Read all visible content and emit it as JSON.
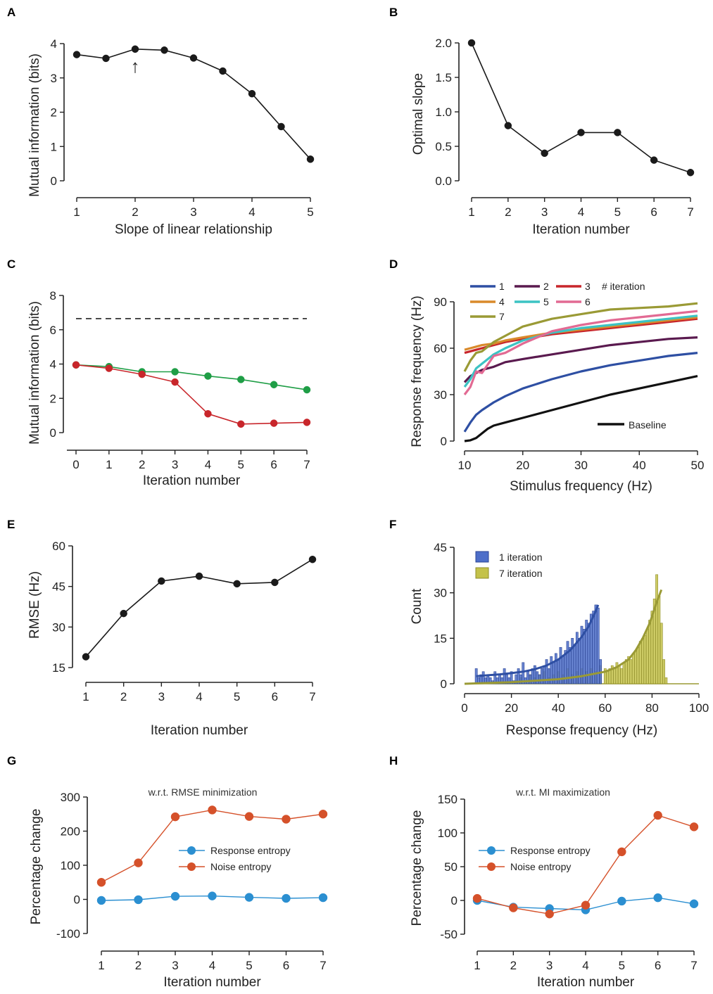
{
  "chart_data": [
    {
      "id": "A",
      "type": "line",
      "xlabel": "Slope of linear relationship",
      "ylabel": "Mutual information (bits)",
      "xlim": [
        1,
        5
      ],
      "ylim": [
        0,
        4
      ],
      "xticks": [
        "1",
        "2",
        "3",
        "4",
        "5"
      ],
      "yticks": [
        "0",
        "1",
        "2",
        "3",
        "4"
      ],
      "series": [
        {
          "name": "mutual information",
          "color": "#1a1a1a",
          "x": [
            1,
            1.5,
            2,
            2.5,
            3,
            3.5,
            4,
            4.5,
            5
          ],
          "y": [
            3.68,
            3.57,
            3.84,
            3.81,
            3.58,
            3.2,
            2.54,
            1.58,
            0.63
          ]
        }
      ],
      "annotation": {
        "x": 2,
        "symbol": "↑"
      }
    },
    {
      "id": "B",
      "type": "line",
      "xlabel": "Iteration number",
      "ylabel": "Optimal slope",
      "xlim": [
        1,
        7
      ],
      "ylim": [
        0,
        2
      ],
      "xticks": [
        "1",
        "2",
        "3",
        "4",
        "5",
        "6",
        "7"
      ],
      "yticks": [
        "0.0",
        "0.5",
        "1.0",
        "1.5",
        "2.0"
      ],
      "series": [
        {
          "name": "optimal slope",
          "color": "#1a1a1a",
          "x": [
            1,
            2,
            3,
            4,
            5,
            6,
            7
          ],
          "y": [
            2.0,
            0.8,
            0.4,
            0.7,
            0.7,
            0.3,
            0.12
          ]
        }
      ]
    },
    {
      "id": "C",
      "type": "line",
      "xlabel": "Iteration number",
      "ylabel": "Mutual information (bits)",
      "xlim": [
        0,
        7
      ],
      "ylim": [
        0,
        8
      ],
      "xticks": [
        "0",
        "1",
        "2",
        "3",
        "4",
        "5",
        "6",
        "7"
      ],
      "yticks": [
        "0",
        "2",
        "4",
        "6",
        "8"
      ],
      "reference_line": {
        "y": 6.65,
        "style": "dashed"
      },
      "series": [
        {
          "name": "green",
          "color": "#1f9e46",
          "x": [
            0,
            1,
            2,
            3,
            4,
            5,
            6,
            7
          ],
          "y": [
            3.95,
            3.85,
            3.55,
            3.55,
            3.3,
            3.1,
            2.8,
            2.5
          ]
        },
        {
          "name": "red",
          "color": "#c8262b",
          "x": [
            0,
            1,
            2,
            3,
            4,
            5,
            6,
            7
          ],
          "y": [
            3.95,
            3.75,
            3.4,
            2.95,
            1.1,
            0.5,
            0.55,
            0.6
          ]
        }
      ]
    },
    {
      "id": "D",
      "type": "line",
      "xlabel": "Stimulus frequency (Hz)",
      "ylabel": "Response frequency (Hz)",
      "xlim": [
        10,
        50
      ],
      "ylim": [
        0,
        90
      ],
      "xticks": [
        "10",
        "20",
        "30",
        "40",
        "50"
      ],
      "yticks": [
        "0",
        "30",
        "60",
        "90"
      ],
      "legend_title": "# iteration",
      "series": [
        {
          "name": "1",
          "color": "#2e4fa3",
          "x": [
            10,
            11,
            12,
            13,
            15,
            17,
            20,
            25,
            30,
            35,
            40,
            45,
            50
          ],
          "y": [
            6,
            12,
            17,
            20,
            25,
            29,
            34,
            40,
            45,
            49,
            52,
            55,
            57
          ]
        },
        {
          "name": "2",
          "color": "#5a1a4f",
          "x": [
            10,
            11,
            12,
            13,
            15,
            17,
            20,
            25,
            30,
            35,
            40,
            45,
            50
          ],
          "y": [
            38,
            42,
            44,
            46,
            48,
            51,
            53,
            56,
            59,
            62,
            64,
            66,
            67
          ]
        },
        {
          "name": "3",
          "color": "#c8262b",
          "x": [
            10,
            11,
            12,
            13,
            15,
            17,
            20,
            25,
            30,
            35,
            40,
            45,
            50
          ],
          "y": [
            57,
            58,
            59,
            60,
            62,
            64,
            66,
            69,
            71,
            73,
            75,
            77,
            79
          ]
        },
        {
          "name": "4",
          "color": "#d98a2b",
          "x": [
            10,
            11,
            12,
            13,
            15,
            17,
            20,
            25,
            30,
            35,
            40,
            45,
            50
          ],
          "y": [
            59,
            60,
            61,
            62,
            63,
            65,
            67,
            70,
            72,
            74,
            76,
            78,
            80
          ]
        },
        {
          "name": "5",
          "color": "#3cc3c3",
          "x": [
            10,
            11,
            12,
            13,
            15,
            17,
            20,
            25,
            30,
            35,
            40,
            45,
            50
          ],
          "y": [
            35,
            40,
            47,
            50,
            56,
            60,
            65,
            70,
            73,
            75,
            77,
            79,
            81
          ]
        },
        {
          "name": "6",
          "color": "#e26a93",
          "x": [
            10,
            11,
            12,
            13,
            15,
            17,
            20,
            25,
            30,
            35,
            40,
            45,
            50
          ],
          "y": [
            30,
            35,
            45,
            44,
            55,
            57,
            63,
            71,
            75,
            78,
            80,
            82,
            84
          ]
        },
        {
          "name": "7",
          "color": "#9a9a35",
          "x": [
            10,
            11,
            12,
            13,
            15,
            17,
            20,
            25,
            30,
            35,
            40,
            45,
            50
          ],
          "y": [
            45,
            52,
            57,
            58,
            64,
            68,
            74,
            79,
            82,
            85,
            86,
            87,
            89
          ]
        },
        {
          "name": "Baseline",
          "color": "#111111",
          "x": [
            10,
            11,
            12,
            13,
            14,
            15,
            17,
            20,
            25,
            30,
            35,
            40,
            45,
            50
          ],
          "y": [
            0,
            0.5,
            2,
            5,
            8,
            10,
            12,
            15,
            20,
            25,
            30,
            34,
            38,
            42
          ]
        }
      ]
    },
    {
      "id": "E",
      "type": "line",
      "xlabel": "Iteration number",
      "ylabel": "RMSE (Hz)",
      "xlim": [
        1,
        7
      ],
      "ylim": [
        15,
        60
      ],
      "xticks": [
        "1",
        "2",
        "3",
        "4",
        "5",
        "6",
        "7"
      ],
      "yticks": [
        "15",
        "30",
        "45",
        "60"
      ],
      "series": [
        {
          "name": "RMSE",
          "color": "#1a1a1a",
          "x": [
            1,
            2,
            3,
            4,
            5,
            6,
            7
          ],
          "y": [
            19,
            35,
            47,
            48.8,
            46,
            46.5,
            55
          ]
        }
      ]
    },
    {
      "id": "F",
      "type": "bar",
      "xlabel": "Response frequency (Hz)",
      "ylabel": "Count",
      "xlim": [
        0,
        100
      ],
      "ylim": [
        0,
        45
      ],
      "xticks": [
        "0",
        "20",
        "40",
        "60",
        "80",
        "100"
      ],
      "yticks": [
        "0",
        "15",
        "30",
        "45"
      ],
      "series": [
        {
          "name": "1 iteration",
          "color": "#4d6ec9",
          "edge": "#2b4495",
          "x": [
            5,
            6,
            7,
            8,
            9,
            10,
            11,
            12,
            13,
            14,
            15,
            16,
            17,
            18,
            19,
            20,
            21,
            22,
            23,
            24,
            25,
            26,
            27,
            28,
            29,
            30,
            31,
            32,
            33,
            34,
            35,
            36,
            37,
            38,
            39,
            40,
            41,
            42,
            43,
            44,
            45,
            46,
            47,
            48,
            49,
            50,
            51,
            52,
            53,
            54,
            55,
            56,
            57,
            58
          ],
          "values": [
            5,
            2,
            3,
            4,
            2,
            3,
            2,
            1,
            4,
            2,
            3,
            2,
            5,
            3,
            2,
            4,
            1,
            3,
            5,
            3,
            7,
            2,
            4,
            3,
            5,
            6,
            4,
            3,
            5,
            6,
            8,
            5,
            9,
            7,
            10,
            8,
            12,
            9,
            11,
            14,
            12,
            15,
            13,
            17,
            15,
            19,
            18,
            21,
            20,
            23,
            24,
            26,
            25,
            8
          ]
        },
        {
          "name": "7 iteration",
          "color": "#c4c24a",
          "edge": "#8f8d2a",
          "x": [
            22,
            24,
            26,
            28,
            30,
            32,
            34,
            36,
            38,
            40,
            42,
            44,
            46,
            48,
            50,
            52,
            54,
            56,
            58,
            60,
            61,
            62,
            63,
            64,
            65,
            66,
            67,
            68,
            69,
            70,
            71,
            72,
            73,
            74,
            75,
            76,
            77,
            78,
            79,
            80,
            81,
            82,
            83,
            84,
            85,
            86
          ],
          "values": [
            1,
            2,
            1,
            3,
            2,
            3,
            4,
            2,
            3,
            4,
            3,
            5,
            3,
            4,
            5,
            4,
            5,
            4,
            6,
            5,
            4,
            5,
            6,
            5,
            7,
            6,
            5,
            7,
            8,
            9,
            8,
            10,
            11,
            12,
            14,
            15,
            16,
            18,
            21,
            24,
            28,
            36,
            29,
            20,
            8,
            2
          ]
        }
      ],
      "fit_curves": [
        {
          "name": "1 iteration fit",
          "color": "#2e4fa3",
          "x": [
            5,
            10,
            15,
            20,
            25,
            30,
            35,
            40,
            45,
            50,
            53,
            56,
            57
          ],
          "y": [
            2.5,
            2.8,
            3.1,
            3.5,
            4,
            4.8,
            6,
            8,
            11,
            15.5,
            19,
            24,
            26
          ]
        },
        {
          "name": "7 iteration fit",
          "color": "#9a9a35",
          "x": [
            0,
            20,
            40,
            50,
            60,
            65,
            70,
            73,
            76,
            79,
            82,
            84
          ],
          "y": [
            0,
            0.5,
            1.5,
            2.5,
            4,
            5.5,
            8,
            11,
            15,
            20,
            27,
            31
          ]
        }
      ]
    },
    {
      "id": "G",
      "type": "line",
      "subtitle": "w.r.t. RMSE minimization",
      "xlabel": "Iteration number",
      "ylabel": "Percentage change",
      "xlim": [
        1,
        7
      ],
      "ylim": [
        -100,
        300
      ],
      "xticks": [
        "1",
        "2",
        "3",
        "4",
        "5",
        "6",
        "7"
      ],
      "yticks": [
        "-100",
        "0",
        "100",
        "200",
        "300"
      ],
      "series": [
        {
          "name": "Response entropy",
          "color": "#2b8fd1",
          "x": [
            1,
            2,
            3,
            4,
            5,
            6,
            7
          ],
          "y": [
            -3,
            -1,
            9,
            10,
            6,
            3,
            5
          ]
        },
        {
          "name": "Noise entropy",
          "color": "#d5512a",
          "x": [
            1,
            2,
            3,
            4,
            5,
            6,
            7
          ],
          "y": [
            50,
            107,
            242,
            262,
            243,
            235,
            250
          ]
        }
      ]
    },
    {
      "id": "H",
      "type": "line",
      "subtitle": "w.r.t. MI maximization",
      "xlabel": "Iteration number",
      "ylabel": "Percentage change",
      "xlim": [
        1,
        7
      ],
      "ylim": [
        -50,
        150
      ],
      "xticks": [
        "1",
        "2",
        "3",
        "4",
        "5",
        "6",
        "7"
      ],
      "yticks": [
        "-50",
        "0",
        "50",
        "100",
        "150"
      ],
      "series": [
        {
          "name": "Response entropy",
          "color": "#2b8fd1",
          "x": [
            1,
            2,
            3,
            4,
            5,
            6,
            7
          ],
          "y": [
            0,
            -10,
            -12,
            -14,
            -1,
            4,
            -5
          ]
        },
        {
          "name": "Noise entropy",
          "color": "#d5512a",
          "x": [
            1,
            2,
            3,
            4,
            5,
            6,
            7
          ],
          "y": [
            3,
            -11,
            -20,
            -7,
            72,
            126,
            109
          ]
        }
      ]
    }
  ]
}
